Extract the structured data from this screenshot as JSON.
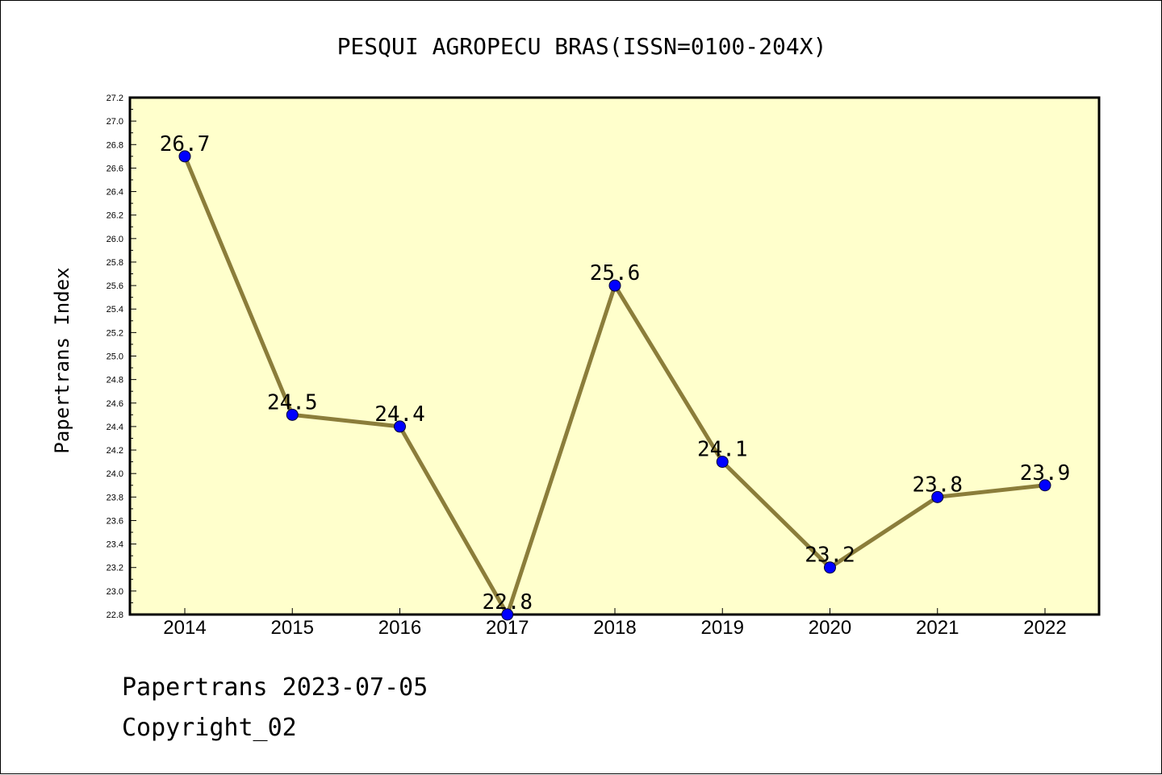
{
  "colors": {
    "plot_background": "#ffffcc",
    "line": "#8b7d3a",
    "marker": "#0000ff",
    "axis": "#000000"
  },
  "footer": {
    "line1": "Papertrans 2023-07-05",
    "line2": "Copyright_02"
  },
  "chart_data": {
    "type": "line",
    "title": "PESQUI AGROPECU BRAS(ISSN=0100-204X)",
    "xlabel": "",
    "ylabel": "Papertrans Index",
    "categories": [
      "2014",
      "2015",
      "2016",
      "2017",
      "2018",
      "2019",
      "2020",
      "2021",
      "2022"
    ],
    "values": [
      26.7,
      24.5,
      24.4,
      22.8,
      25.6,
      24.1,
      23.2,
      23.8,
      23.9
    ],
    "data_labels": [
      "26.7",
      "24.5",
      "24.4",
      "22.8",
      "25.6",
      "24.1",
      "23.2",
      "23.8",
      "23.9"
    ],
    "ylim": [
      22.8,
      27.2
    ],
    "yticks": [
      "22.8",
      "23.0",
      "23.2",
      "23.4",
      "23.6",
      "23.8",
      "24.0",
      "24.2",
      "24.4",
      "24.6",
      "24.8",
      "25.0",
      "25.2",
      "25.4",
      "25.6",
      "25.8",
      "26.0",
      "26.2",
      "26.4",
      "26.6",
      "26.8",
      "27.0",
      "27.2"
    ],
    "grid": false,
    "legend": "none"
  }
}
